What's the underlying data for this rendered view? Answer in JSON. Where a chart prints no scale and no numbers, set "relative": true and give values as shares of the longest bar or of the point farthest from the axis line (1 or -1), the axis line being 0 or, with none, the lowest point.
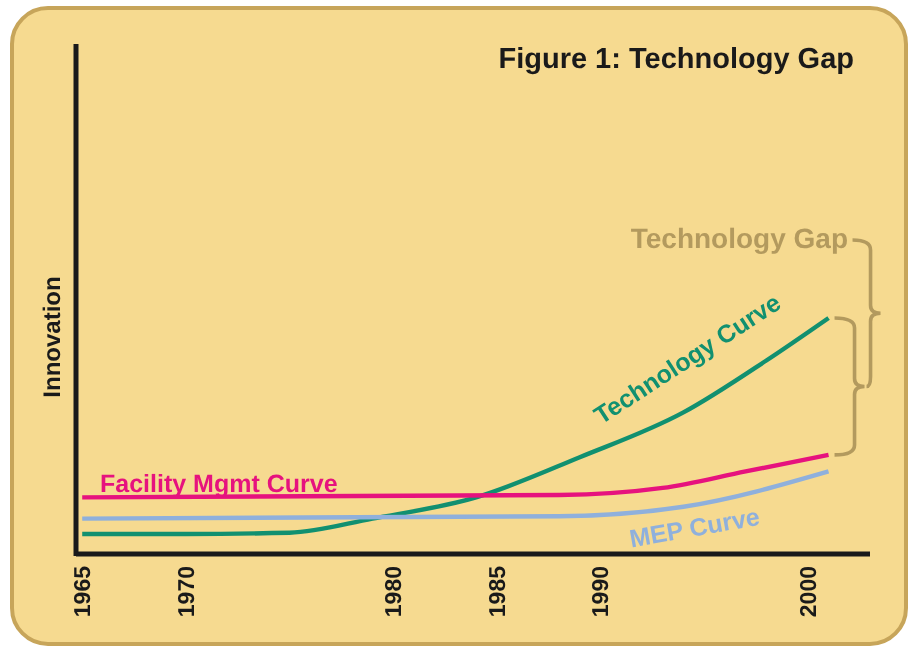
{
  "chart_data": {
    "type": "line",
    "title": "Figure 1: Technology Gap",
    "ylabel": "Innovation",
    "relative": true,
    "xlim": [
      1964.7,
      2003
    ],
    "xticks": [
      1965,
      1970,
      1980,
      1985,
      1990,
      2000
    ],
    "annotations": [
      "Technology Gap"
    ],
    "series": [
      {
        "name": "Technology Curve",
        "color": "#119070",
        "x": [
          1965,
          1970,
          1975,
          1979,
          1984,
          1989,
          1994,
          1998,
          2001
        ],
        "values": [
          0.085,
          0.085,
          0.09,
          0.15,
          0.24,
          0.41,
          0.6,
          0.82,
          1
        ]
      },
      {
        "name": "Facility Mgmt Curve",
        "color": "#e6127e",
        "x": [
          1965,
          1988,
          1993,
          1997,
          2001
        ],
        "values": [
          0.24,
          0.25,
          0.28,
          0.35,
          0.42
        ]
      },
      {
        "name": "MEP Curve",
        "color": "#8fb0dc",
        "x": [
          1965,
          1988,
          1994,
          2001
        ],
        "values": [
          0.15,
          0.16,
          0.2,
          0.35
        ]
      }
    ]
  }
}
